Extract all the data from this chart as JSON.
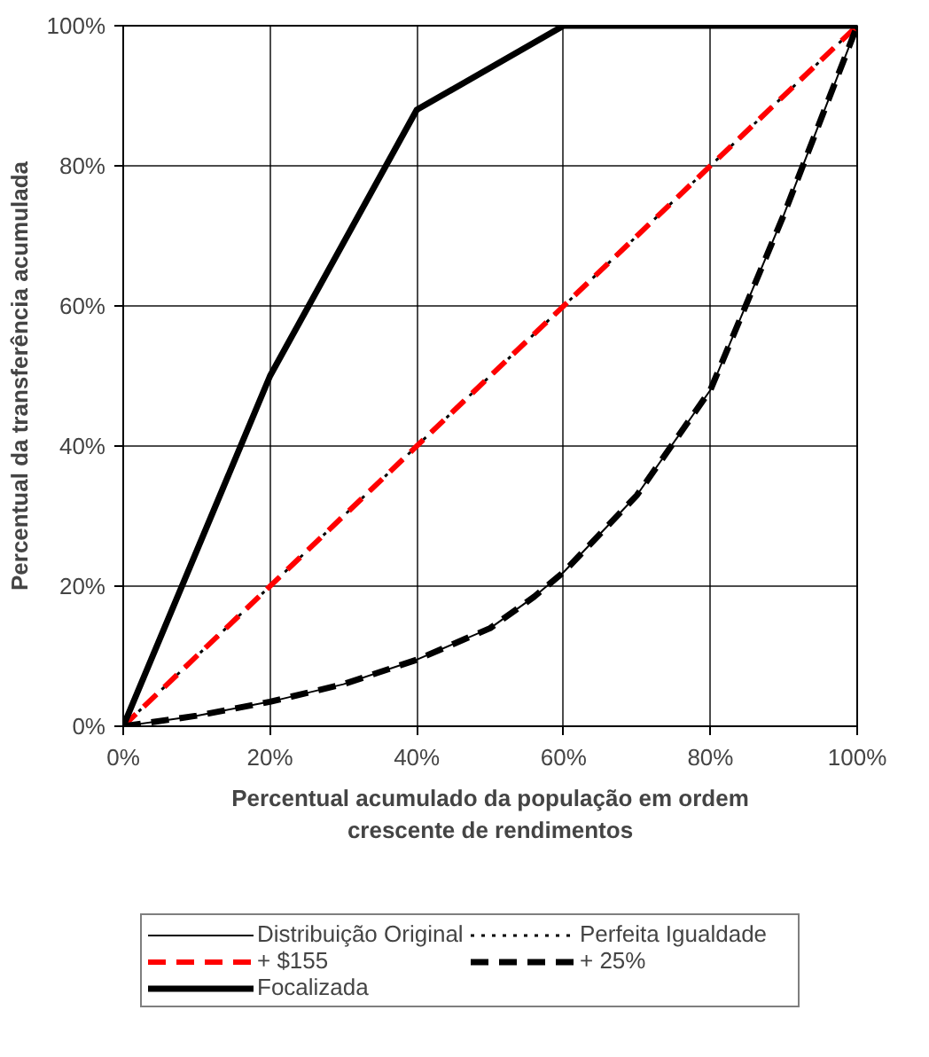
{
  "chart_data": {
    "type": "line",
    "xlabel": "Percentual acumulado da população em ordem crescente de rendimentos",
    "ylabel": "Percentual da transferência acumulada",
    "xlim": [
      0,
      100
    ],
    "ylim": [
      0,
      100
    ],
    "xticks": [
      {
        "value": 0,
        "label": "0%"
      },
      {
        "value": 20,
        "label": "20%"
      },
      {
        "value": 40,
        "label": "40%"
      },
      {
        "value": 60,
        "label": "60%"
      },
      {
        "value": 80,
        "label": "80%"
      },
      {
        "value": 100,
        "label": "100%"
      }
    ],
    "yticks": [
      {
        "value": 0,
        "label": "0%"
      },
      {
        "value": 20,
        "label": "20%"
      },
      {
        "value": 40,
        "label": "40%"
      },
      {
        "value": 60,
        "label": "60%"
      },
      {
        "value": 80,
        "label": "80%"
      },
      {
        "value": 100,
        "label": "100%"
      }
    ],
    "grid": true,
    "legend": "bottom",
    "marker": "none",
    "series": [
      {
        "name": "Distribuição Original",
        "color": "#000000",
        "line_style": "solid",
        "x": [
          0,
          10,
          20,
          30,
          40,
          50,
          56,
          60,
          70,
          80,
          90,
          100
        ],
        "values": [
          0,
          1.5,
          3.5,
          6,
          9.5,
          14,
          18.5,
          22,
          33,
          48,
          73,
          100
        ]
      },
      {
        "name": "Perfeita Igualdade",
        "color": "#000000",
        "line_style": "dotted",
        "x": [
          0,
          100
        ],
        "values": [
          0,
          100
        ]
      },
      {
        "name": "+ $155",
        "color": "#ff0000",
        "line_style": "dashed",
        "x": [
          0,
          100
        ],
        "values": [
          0,
          100
        ]
      },
      {
        "name": "+ 25%",
        "color": "#000000",
        "line_style": "dashed",
        "x": [
          0,
          10,
          20,
          30,
          40,
          50,
          56,
          60,
          70,
          80,
          90,
          100
        ],
        "values": [
          0,
          1.5,
          3.5,
          6,
          9.5,
          14,
          18.5,
          22,
          33,
          48,
          73,
          100
        ]
      },
      {
        "name": "Focalizada",
        "color": "#000000",
        "line_style": "solid",
        "x": [
          0,
          20,
          40,
          60,
          100
        ],
        "values": [
          0,
          50,
          88,
          100,
          100
        ]
      }
    ]
  }
}
